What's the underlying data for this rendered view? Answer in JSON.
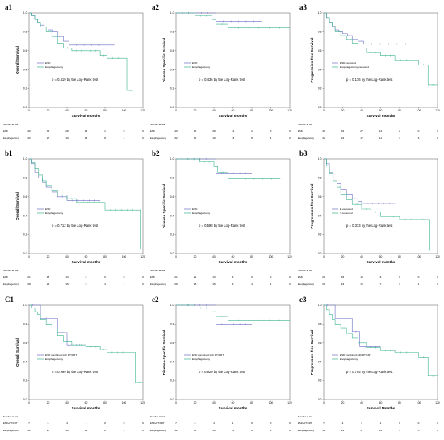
{
  "figure": {
    "background": "#ffffff",
    "colors": {
      "esd": "#6a6fc4",
      "eso": "#3bb38e"
    }
  },
  "chart_data": [
    {
      "id": "a1",
      "type": "line",
      "title": "a1",
      "ylabel": "Overall Survival",
      "xlabel": "Survival months",
      "xlim": [
        0,
        120
      ],
      "ylim": [
        0,
        1.0
      ],
      "xticks": [
        0,
        20,
        40,
        60,
        80,
        100,
        120
      ],
      "yticks": [
        0,
        0.2,
        0.4,
        0.6,
        0.8,
        1.0
      ],
      "p_text": "p = 0.419 by the Log-Rank test",
      "series": [
        {
          "name": "ESD",
          "color": "#6a6fc4",
          "x": [
            0,
            3,
            6,
            9,
            12,
            16,
            20,
            25,
            30,
            36,
            42,
            90
          ],
          "y": [
            1.0,
            0.97,
            0.93,
            0.9,
            0.87,
            0.85,
            0.82,
            0.8,
            0.75,
            0.7,
            0.66,
            0.66
          ]
        },
        {
          "name": "Esophagectomy",
          "color": "#3bb38e",
          "x": [
            0,
            3,
            6,
            9,
            12,
            18,
            24,
            30,
            36,
            45,
            60,
            75,
            82,
            100,
            103,
            110
          ],
          "y": [
            1.0,
            0.97,
            0.93,
            0.9,
            0.85,
            0.8,
            0.75,
            0.68,
            0.63,
            0.6,
            0.6,
            0.55,
            0.52,
            0.52,
            0.18,
            0.18
          ]
        }
      ],
      "risk": {
        "header": "Number at risk",
        "columns": [
          0,
          20,
          40,
          60,
          80,
          100,
          120
        ],
        "rows": [
          {
            "label": "ESD",
            "values": [
              "40",
              "35",
              "28",
              "14",
              "1",
              "0",
              "0"
            ]
          },
          {
            "label": "Esophagectomy",
            "values": [
              "32",
              "27",
              "19",
              "13",
              "8",
              "4",
              "0"
            ]
          }
        ]
      }
    },
    {
      "id": "a2",
      "type": "line",
      "title": "a2",
      "ylabel": "Disease Specific Survival",
      "xlabel": "Survival months",
      "xlim": [
        0,
        120
      ],
      "ylim": [
        0,
        1.0
      ],
      "xticks": [
        0,
        20,
        40,
        60,
        80,
        100,
        120
      ],
      "yticks": [
        0,
        0.2,
        0.4,
        0.6,
        0.8,
        1.0
      ],
      "p_text": "p = 0.436 by the Log-Rank test",
      "series": [
        {
          "name": "ESD",
          "color": "#6a6fc4",
          "x": [
            0,
            40,
            42,
            90
          ],
          "y": [
            1.0,
            1.0,
            0.91,
            0.91
          ]
        },
        {
          "name": "Esophagectomy",
          "color": "#3bb38e",
          "x": [
            0,
            20,
            38,
            42,
            55,
            120
          ],
          "y": [
            1.0,
            0.97,
            0.93,
            0.88,
            0.84,
            0.84
          ]
        }
      ],
      "risk": {
        "header": "Number at risk",
        "columns": [
          0,
          20,
          40,
          60,
          80,
          100,
          120
        ],
        "rows": [
          {
            "label": "ESD",
            "values": [
              "40",
              "40",
              "28",
              "14",
              "2",
              "0",
              "0"
            ]
          },
          {
            "label": "Esophagectomy",
            "values": [
              "32",
              "32",
              "19",
              "13",
              "8",
              "4",
              "0"
            ]
          }
        ]
      }
    },
    {
      "id": "a3",
      "type": "line",
      "title": "a3",
      "ylabel": "Progression-free Survival",
      "xlabel": "Survival months",
      "xlim": [
        0,
        120
      ],
      "ylim": [
        0,
        1.0
      ],
      "xticks": [
        0,
        20,
        40,
        60,
        80,
        100,
        120
      ],
      "yticks": [
        0,
        0.2,
        0.4,
        0.6,
        0.8,
        1.0
      ],
      "p_text": "p = 0.176 by the Log-Rank test",
      "series": [
        {
          "name": "ESD-censored",
          "color": "#6a6fc4",
          "x": [
            0,
            3,
            6,
            9,
            12,
            16,
            20,
            25,
            30,
            36,
            42,
            95
          ],
          "y": [
            1.0,
            0.95,
            0.9,
            0.86,
            0.82,
            0.8,
            0.78,
            0.76,
            0.72,
            0.7,
            0.67,
            0.67
          ]
        },
        {
          "name": "Esophagectomy-censored",
          "color": "#3bb38e",
          "x": [
            0,
            3,
            6,
            9,
            12,
            18,
            24,
            30,
            36,
            45,
            60,
            75,
            100,
            110,
            120
          ],
          "y": [
            1.0,
            0.95,
            0.9,
            0.85,
            0.8,
            0.76,
            0.72,
            0.68,
            0.63,
            0.58,
            0.55,
            0.5,
            0.45,
            0.24,
            0.24
          ]
        }
      ],
      "risk": {
        "header": "Number at risk",
        "columns": [
          0,
          20,
          40,
          60,
          80,
          100,
          120
        ],
        "rows": [
          {
            "label": "ESD",
            "values": [
              "40",
              "34",
              "27",
              "14",
              "2",
              "0",
              "0"
            ]
          },
          {
            "label": "Esophagectomy",
            "values": [
              "32",
              "24",
              "17",
              "11",
              "7",
              "3",
              "0"
            ]
          }
        ]
      }
    },
    {
      "id": "b1",
      "type": "line",
      "title": "b1",
      "ylabel": "Overall Survival",
      "xlabel": "Survival months",
      "xlim": [
        0,
        120
      ],
      "ylim": [
        0,
        1.0
      ],
      "xticks": [
        0,
        20,
        40,
        60,
        80,
        100,
        120
      ],
      "yticks": [
        0,
        0.2,
        0.4,
        0.6,
        0.8,
        1.0
      ],
      "p_text": "p = 0.712 by the Log-Rank test",
      "series": [
        {
          "name": "ESD",
          "color": "#6a6fc4",
          "x": [
            0,
            3,
            6,
            10,
            14,
            18,
            24,
            30,
            40,
            75
          ],
          "y": [
            1.0,
            0.95,
            0.86,
            0.8,
            0.75,
            0.7,
            0.65,
            0.6,
            0.56,
            0.56
          ]
        },
        {
          "name": "Esophagectomy",
          "color": "#3bb38e",
          "x": [
            0,
            3,
            6,
            10,
            14,
            18,
            24,
            30,
            40,
            50,
            80,
            115,
            118
          ],
          "y": [
            1.0,
            0.96,
            0.9,
            0.83,
            0.77,
            0.72,
            0.67,
            0.62,
            0.58,
            0.54,
            0.46,
            0.46,
            0.05
          ]
        }
      ],
      "risk": {
        "header": "Number at risk",
        "columns": [
          0,
          20,
          40,
          60,
          80,
          100,
          120
        ],
        "rows": [
          {
            "label": "ESD",
            "values": [
              "21",
              "18",
              "13",
              "6",
              "0",
              "0",
              "0"
            ]
          },
          {
            "label": "Esophagectomy",
            "values": [
              "28",
              "23",
              "15",
              "6",
              "4",
              "1",
              "0"
            ]
          }
        ]
      }
    },
    {
      "id": "b2",
      "type": "line",
      "title": "b2",
      "ylabel": "Disease Specific Survival",
      "xlabel": "Survival months",
      "xlim": [
        0,
        120
      ],
      "ylim": [
        0,
        1.0
      ],
      "xticks": [
        0,
        20,
        40,
        60,
        80,
        100,
        120
      ],
      "yticks": [
        0,
        0.2,
        0.4,
        0.6,
        0.8,
        1.0
      ],
      "p_text": "p = 0.598 by the Log-Rank test",
      "series": [
        {
          "name": "ESD",
          "color": "#6a6fc4",
          "x": [
            0,
            38,
            42,
            80
          ],
          "y": [
            1.0,
            1.0,
            0.85,
            0.85
          ]
        },
        {
          "name": "Esophagectomy",
          "color": "#3bb38e",
          "x": [
            0,
            25,
            40,
            44,
            55,
            110
          ],
          "y": [
            1.0,
            0.97,
            0.92,
            0.86,
            0.79,
            0.79
          ]
        }
      ],
      "risk": {
        "header": "Number at risk",
        "columns": [
          0,
          20,
          40,
          60,
          80,
          100,
          120
        ],
        "rows": [
          {
            "label": "ESD",
            "values": [
              "21",
              "21",
              "13",
              "6",
              "0",
              "0",
              "0"
            ]
          },
          {
            "label": "Esophagectomy",
            "values": [
              "28",
              "28",
              "15",
              "6",
              "4",
              "1",
              "0"
            ]
          }
        ]
      }
    },
    {
      "id": "b3",
      "type": "line",
      "title": "b3",
      "ylabel": "Progression-free Survival",
      "xlabel": "Survival months",
      "xlim": [
        0,
        120
      ],
      "ylim": [
        0,
        1.0
      ],
      "xticks": [
        0,
        20,
        40,
        60,
        80,
        100,
        120
      ],
      "yticks": [
        0,
        0.2,
        0.4,
        0.6,
        0.8,
        1.0
      ],
      "p_text": "p = 0.373 by the Log-Rank test",
      "series": [
        {
          "name": "E-censored",
          "color": "#6a6fc4",
          "x": [
            0,
            3,
            6,
            10,
            14,
            18,
            24,
            30,
            36,
            40,
            75
          ],
          "y": [
            1.0,
            0.95,
            0.86,
            0.8,
            0.74,
            0.68,
            0.63,
            0.58,
            0.55,
            0.53,
            0.53
          ]
        },
        {
          "name": "Y-censored",
          "color": "#3bb38e",
          "x": [
            0,
            3,
            6,
            10,
            14,
            18,
            24,
            30,
            40,
            50,
            60,
            80,
            110,
            112
          ],
          "y": [
            1.0,
            0.93,
            0.85,
            0.77,
            0.7,
            0.63,
            0.57,
            0.52,
            0.47,
            0.44,
            0.39,
            0.36,
            0.36,
            0.03
          ]
        }
      ],
      "risk": {
        "header": "Number at risk",
        "columns": [
          0,
          20,
          40,
          60,
          80,
          100,
          120
        ],
        "rows": [
          {
            "label": "ESD",
            "values": [
              "21",
              "18",
              "13",
              "6",
              "0",
              "0",
              "0"
            ]
          },
          {
            "label": "Esophagectomy",
            "values": [
              "28",
              "19",
              "12",
              "7",
              "3",
              "1",
              "0"
            ]
          }
        ]
      }
    },
    {
      "id": "c1",
      "type": "line",
      "title": "C1",
      "ylabel": "Overall Survival",
      "xlabel": "Survival months",
      "xlim": [
        0,
        120
      ],
      "ylim": [
        0,
        1.0
      ],
      "xticks": [
        0,
        20,
        40,
        60,
        80,
        100,
        120
      ],
      "yticks": [
        0,
        0.2,
        0.4,
        0.6,
        0.8,
        1.0
      ],
      "p_text": "p = 0.999 by the Log-Rank test",
      "series": [
        {
          "name": "ESD combined with RT/CRT",
          "color": "#6a6fc4",
          "x": [
            0,
            8,
            12,
            25,
            30,
            40,
            60
          ],
          "y": [
            1.0,
            1.0,
            0.86,
            0.86,
            0.71,
            0.58,
            0.58
          ]
        },
        {
          "name": "Esophagectomy",
          "color": "#3bb38e",
          "x": [
            0,
            3,
            6,
            9,
            12,
            18,
            24,
            30,
            36,
            45,
            60,
            75,
            82,
            110,
            112,
            120
          ],
          "y": [
            1.0,
            0.97,
            0.93,
            0.9,
            0.85,
            0.8,
            0.75,
            0.68,
            0.62,
            0.58,
            0.56,
            0.53,
            0.5,
            0.5,
            0.18,
            0.18
          ]
        }
      ],
      "risk": {
        "header": "Number at risk",
        "columns": [
          0,
          20,
          40,
          60,
          80,
          100,
          120
        ],
        "rows": [
          {
            "label": "ESD+RT/CRT",
            "values": [
              "7",
              "6",
              "4",
              "1",
              "0",
              "0",
              "0"
            ]
          },
          {
            "label": "Esophagectomy",
            "values": [
              "32",
              "27",
              "19",
              "13",
              "8",
              "4",
              "0"
            ]
          }
        ]
      }
    },
    {
      "id": "c2",
      "type": "line",
      "title": "c2",
      "ylabel": "Disease-Specific Survival",
      "xlabel": "Survival months",
      "xlim": [
        0,
        120
      ],
      "ylim": [
        0,
        1.0
      ],
      "xticks": [
        0,
        20,
        40,
        60,
        80,
        100,
        120
      ],
      "yticks": [
        0,
        0.2,
        0.4,
        0.6,
        0.8,
        1.0
      ],
      "p_text": "p = 0.920 by the Log-Rank test",
      "series": [
        {
          "name": "ESD combined with RT/CRT",
          "color": "#6a6fc4",
          "x": [
            0,
            38,
            42,
            80
          ],
          "y": [
            1.0,
            1.0,
            0.8,
            0.8
          ]
        },
        {
          "name": "Esophagectomy",
          "color": "#3bb38e",
          "x": [
            0,
            20,
            38,
            42,
            55,
            120
          ],
          "y": [
            1.0,
            0.97,
            0.93,
            0.88,
            0.84,
            0.84
          ]
        }
      ],
      "risk": {
        "header": "Number at risk",
        "columns": [
          0,
          20,
          40,
          60,
          80,
          100,
          120
        ],
        "rows": [
          {
            "label": "ESD+RT/CRT",
            "values": [
              "7",
              "6",
              "4",
              "1",
              "0",
              "0",
              "0"
            ]
          },
          {
            "label": "Esophagectomy",
            "values": [
              "32",
              "32",
              "19",
              "13",
              "8",
              "4",
              "0"
            ]
          }
        ]
      }
    },
    {
      "id": "c3",
      "type": "line",
      "title": "c3",
      "ylabel": "Progression-free Survival",
      "xlabel": "Survival Months",
      "xlim": [
        0,
        120
      ],
      "ylim": [
        0,
        1.0
      ],
      "xticks": [
        0,
        20,
        40,
        60,
        80,
        100,
        120
      ],
      "yticks": [
        0,
        0.2,
        0.4,
        0.6,
        0.8,
        1.0
      ],
      "p_text": "p = 0.795 by the Log-Rank test",
      "series": [
        {
          "name": "ESD combined with RT/CRT",
          "color": "#6a6fc4",
          "x": [
            0,
            8,
            12,
            25,
            30,
            38,
            60
          ],
          "y": [
            1.0,
            1.0,
            0.86,
            0.86,
            0.72,
            0.56,
            0.56
          ]
        },
        {
          "name": "Esophagectomy",
          "color": "#3bb38e",
          "x": [
            0,
            3,
            6,
            9,
            12,
            18,
            24,
            30,
            36,
            45,
            60,
            75,
            100,
            110,
            120
          ],
          "y": [
            1.0,
            0.95,
            0.9,
            0.85,
            0.8,
            0.76,
            0.7,
            0.65,
            0.6,
            0.55,
            0.52,
            0.5,
            0.45,
            0.25,
            0.25
          ]
        }
      ],
      "risk": {
        "header": "Number at risk",
        "columns": [
          0,
          20,
          40,
          60,
          80,
          100,
          120
        ],
        "rows": [
          {
            "label": "ESD+RT/CRT",
            "values": [
              "7",
              "4",
              "4",
              "1",
              "0",
              "0",
              "0"
            ]
          },
          {
            "label": "Esophagectomy",
            "values": [
              "32",
              "24",
              "17",
              "11",
              "7",
              "3",
              "0"
            ]
          }
        ]
      }
    }
  ]
}
